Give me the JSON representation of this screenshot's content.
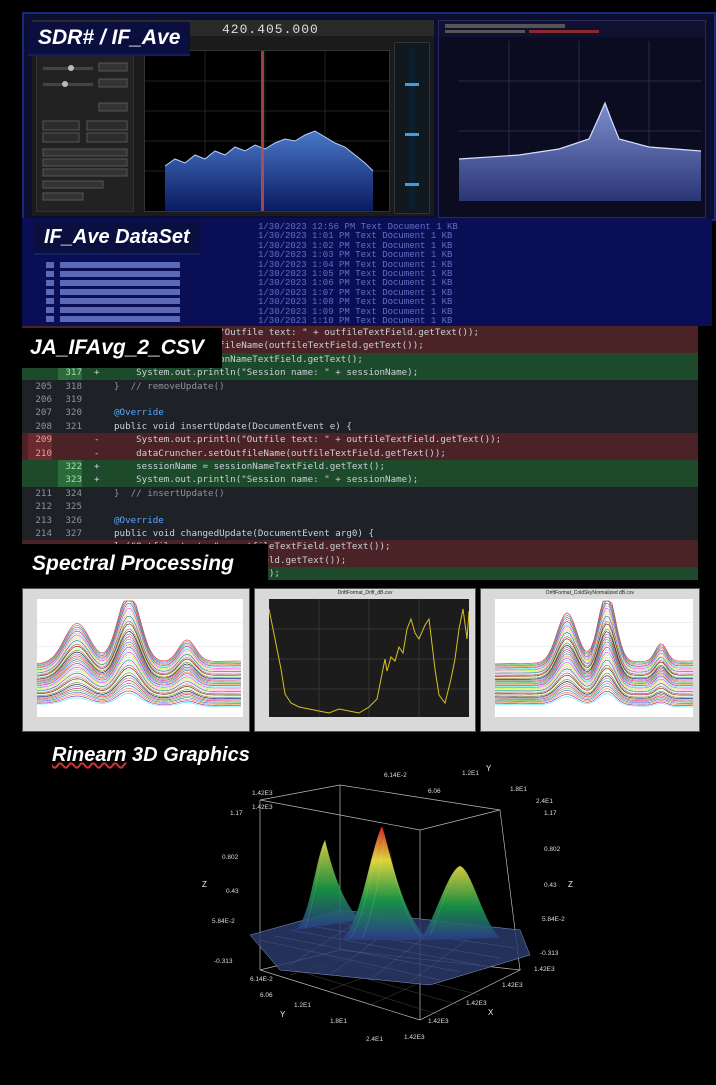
{
  "labels": {
    "sdr": "SDR# / IF_Ave",
    "dataset": "IF_Ave  DataSet",
    "csv": "JA_IFAvg_2_CSV",
    "spectral": "Spectral Processing",
    "rinearn": "Rinearn",
    "graphics": "  3D Graphics"
  },
  "sdr": {
    "frequency": "420.405.000"
  },
  "dataset_rows": [
    "1/30/2023 12:56 PM    Text Document    1 KB",
    "1/30/2023 1:01 PM     Text Document    1 KB",
    "1/30/2023 1:02 PM     Text Document    1 KB",
    "1/30/2023 1:03 PM     Text Document    1 KB",
    "1/30/2023 1:04 PM     Text Document    1 KB",
    "1/30/2023 1:05 PM     Text Document    1 KB",
    "1/30/2023 1:06 PM     Text Document    1 KB",
    "1/30/2023 1:07 PM     Text Document    1 KB",
    "1/30/2023 1:08 PM     Text Document    1 KB",
    "1/30/2023 1:09 PM     Text Document    1 KB",
    "1/30/2023 1:10 PM     Text Document    1 KB"
  ],
  "diff": [
    {
      "t": "del",
      "o": "",
      "n": "",
      "s": "",
      "c": "System.out.println(\"Outfile text: \" + outfileTextField.getText());"
    },
    {
      "t": "del",
      "o": "",
      "n": "",
      "s": "",
      "c": "dataCruncher.setOutfileName(outfileTextField.getText());"
    },
    {
      "t": "add",
      "o": "",
      "n": "",
      "s": "",
      "c": "sessionName = sessionNameTextField.getText();"
    },
    {
      "t": "add",
      "o": "",
      "n": "317",
      "s": "+",
      "c": "    System.out.println(\"Session name: \" + sessionName);"
    },
    {
      "t": "ctx",
      "o": "205",
      "n": "318",
      "s": "",
      "c": "}  // removeUpdate()"
    },
    {
      "t": "ctx",
      "o": "206",
      "n": "319",
      "s": "",
      "c": ""
    },
    {
      "t": "ctx",
      "o": "207",
      "n": "320",
      "s": "",
      "c": "@Override"
    },
    {
      "t": "ctx",
      "o": "208",
      "n": "321",
      "s": "",
      "c": "public void insertUpdate(DocumentEvent e) {"
    },
    {
      "t": "del",
      "o": "209",
      "n": "",
      "s": "-",
      "c": "    System.out.println(\"Outfile text: \" + outfileTextField.getText());"
    },
    {
      "t": "del",
      "o": "210",
      "n": "",
      "s": "-",
      "c": "    dataCruncher.setOutfileName(outfileTextField.getText());"
    },
    {
      "t": "add",
      "o": "",
      "n": "322",
      "s": "+",
      "c": "    sessionName = sessionNameTextField.getText();"
    },
    {
      "t": "add",
      "o": "",
      "n": "323",
      "s": "+",
      "c": "    System.out.println(\"Session name: \" + sessionName);"
    },
    {
      "t": "ctx",
      "o": "211",
      "n": "324",
      "s": "",
      "c": "}  // insertUpdate()"
    },
    {
      "t": "ctx",
      "o": "212",
      "n": "325",
      "s": "",
      "c": ""
    },
    {
      "t": "ctx",
      "o": "213",
      "n": "326",
      "s": "",
      "c": "@Override"
    },
    {
      "t": "ctx",
      "o": "214",
      "n": "327",
      "s": "",
      "c": "public void changedUpdate(DocumentEvent arg0) {"
    },
    {
      "t": "del",
      "o": "",
      "n": "",
      "s": "",
      "c": "ln(\"Outfile text: \" + outfileTextField.getText());"
    },
    {
      "t": "del",
      "o": "",
      "n": "",
      "s": "",
      "c": "utOutfileName(outfileTextField.getText());"
    },
    {
      "t": "add",
      "o": "",
      "n": "",
      "s": "",
      "c": "essionNameTextField.getText();"
    }
  ],
  "spectral_titles": [
    "",
    "DriftFormat_Drift_dB.csv",
    "DriftFormat_ColdSkyNormalized dB.csv"
  ],
  "graph3d": {
    "axes": {
      "x": "X",
      "y": "Y",
      "z": "Z"
    },
    "z_ticks": [
      "1.17",
      "0.802",
      "0.43",
      "5.84E-2",
      "-0.313"
    ],
    "x_ticks": [
      "1.42E3",
      "1.42E3",
      "1.42E3",
      "1.42E3",
      "1.42E3"
    ],
    "y_ticks": [
      "6.14E-2",
      "6.06",
      "1.2E1",
      "1.8E1",
      "2.4E1"
    ],
    "top_left": "1.42E3",
    "top_mid": "6.14E-2",
    "colors": {
      "low": "#2a3a8a",
      "mid": "#1a9a4a",
      "high": "#e8e040",
      "peak": "#d82020"
    }
  }
}
